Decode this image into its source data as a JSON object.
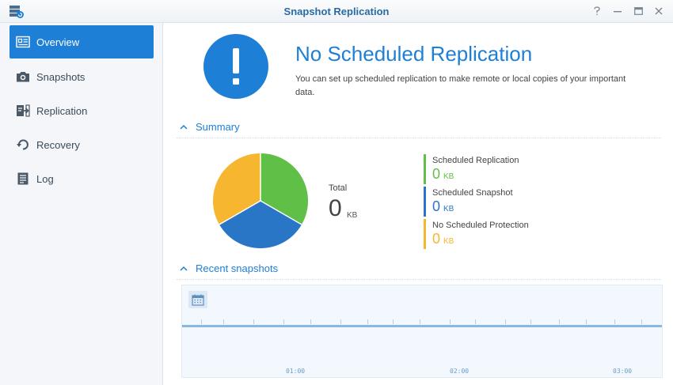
{
  "window": {
    "title": "Snapshot Replication",
    "controls": [
      "help",
      "minimize",
      "maximize",
      "close"
    ]
  },
  "sidebar": {
    "items": [
      {
        "label": "Overview",
        "icon": "overview-icon",
        "active": true
      },
      {
        "label": "Snapshots",
        "icon": "camera-icon",
        "active": false
      },
      {
        "label": "Replication",
        "icon": "replication-icon",
        "active": false
      },
      {
        "label": "Recovery",
        "icon": "recovery-icon",
        "active": false
      },
      {
        "label": "Log",
        "icon": "log-icon",
        "active": false
      }
    ]
  },
  "alert": {
    "icon": "exclamation-icon",
    "title": "No Scheduled Replication",
    "description": "You can set up scheduled replication to make remote or local copies of your important data."
  },
  "summary": {
    "heading": "Summary",
    "total_label": "Total",
    "total_value": "0",
    "total_unit": "KB",
    "legend": [
      {
        "name": "Scheduled Replication",
        "value": "0",
        "unit": "KB",
        "color": "#5fbf46"
      },
      {
        "name": "Scheduled Snapshot",
        "value": "0",
        "unit": "KB",
        "color": "#2a76c6"
      },
      {
        "name": "No Scheduled Protection",
        "value": "0",
        "unit": "KB",
        "color": "#f6b630"
      }
    ]
  },
  "recent": {
    "heading": "Recent snapshots",
    "time_labels": [
      "01:00",
      "02:00",
      "03:00"
    ]
  },
  "colors": {
    "accent": "#1e7fd6",
    "green": "#5fbf46",
    "blue": "#2a76c6",
    "yellow": "#f6b630"
  }
}
